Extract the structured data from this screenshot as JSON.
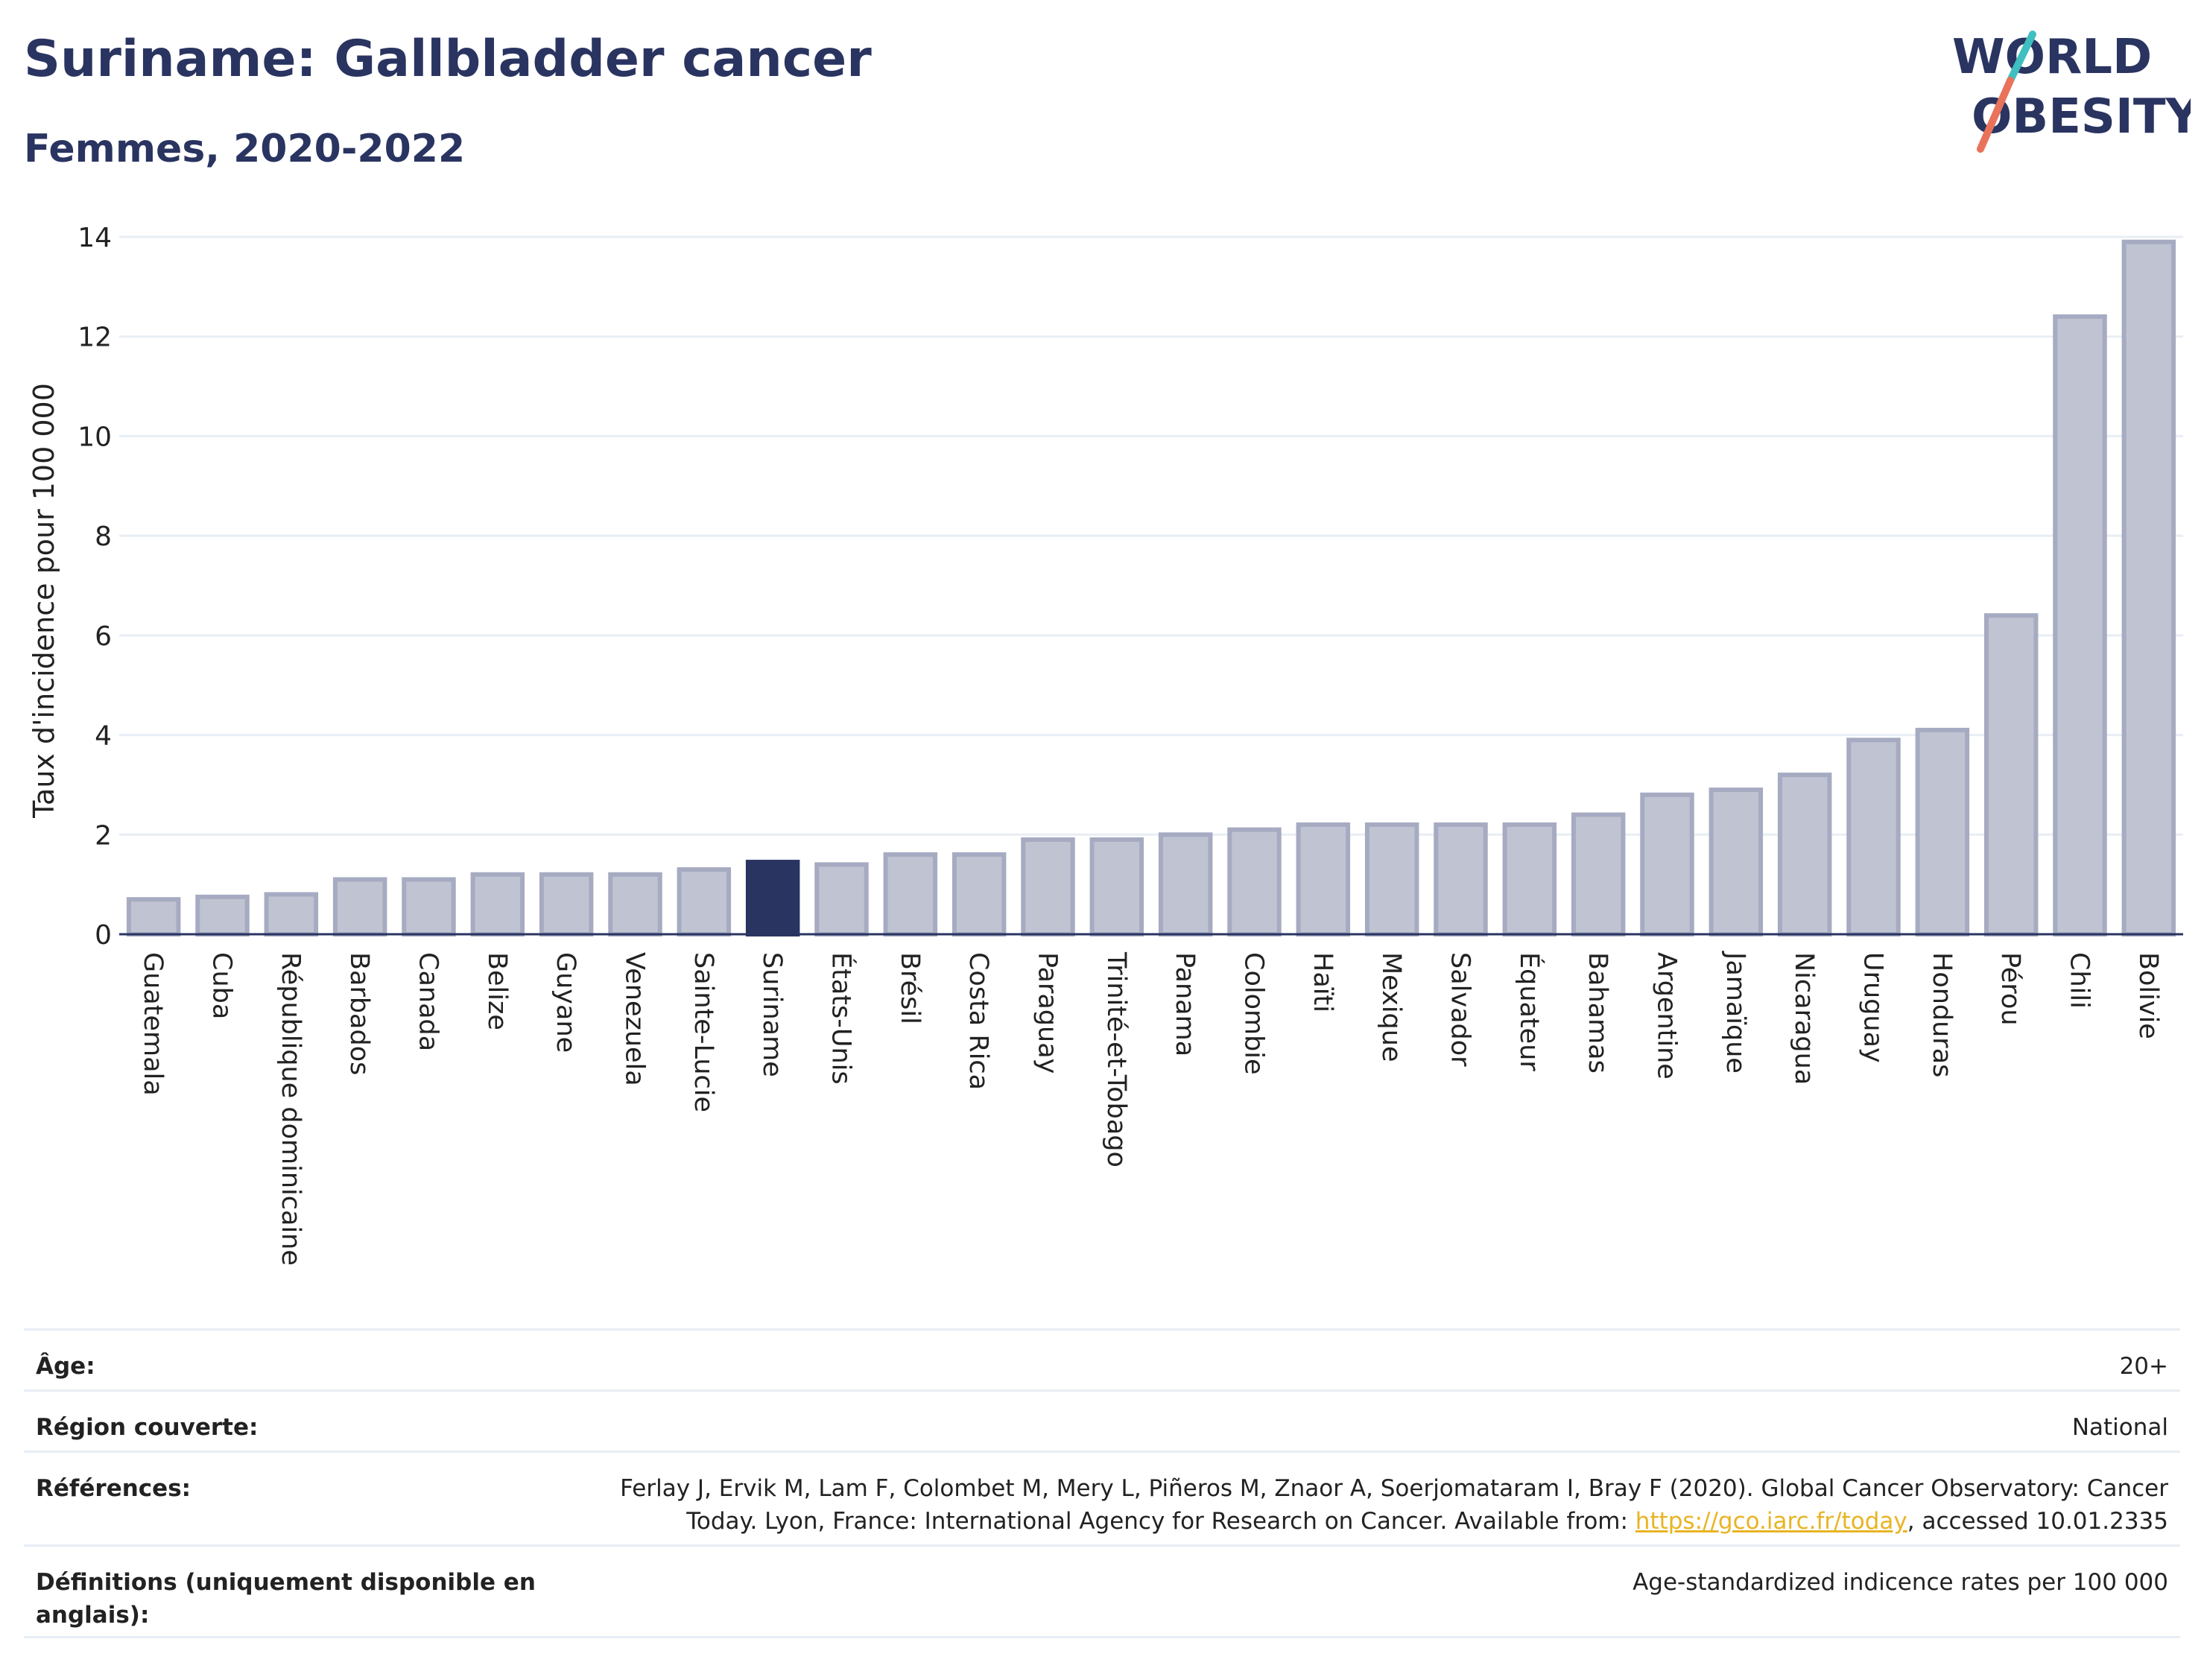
{
  "header": {
    "title": "Suriname: Gallbladder cancer",
    "subtitle": "Femmes, 2020-2022"
  },
  "logo": {
    "line1": "WORLD",
    "line2": "OBESITY",
    "colors": {
      "text": "#2a3461",
      "slash_coral": "#e8735a",
      "slash_teal": "#3fbfbf"
    }
  },
  "colors": {
    "bar_fill": "#c0c3d1",
    "bar_stroke": "#a6abc2",
    "highlight": "#2a3461",
    "grid": "#e8eef5",
    "axis": "#2a3461"
  },
  "chart_data": {
    "type": "bar",
    "ylabel": "Taux d'incidence pour 100 000",
    "xlabel": "",
    "ylim": [
      0,
      14
    ],
    "yticks": [
      0,
      2,
      4,
      6,
      8,
      10,
      12,
      14
    ],
    "grid": true,
    "highlight": "Suriname",
    "categories": [
      "Guatemala",
      "Cuba",
      "République dominicaine",
      "Barbados",
      "Canada",
      "Belize",
      "Guyane",
      "Venezuela",
      "Sainte-Lucie",
      "Suriname",
      "États-Unis",
      "Brésil",
      "Costa Rica",
      "Paraguay",
      "Trinité-et-Tobago",
      "Panama",
      "Colombie",
      "Haïti",
      "Mexique",
      "Salvador",
      "Équateur",
      "Bahamas",
      "Argentine",
      "Jamaïque",
      "Nicaragua",
      "Uruguay",
      "Honduras",
      "Pérou",
      "Chili",
      "Bolivie"
    ],
    "values": [
      0.7,
      0.75,
      0.8,
      1.1,
      1.1,
      1.2,
      1.2,
      1.2,
      1.3,
      1.45,
      1.4,
      1.6,
      1.6,
      1.9,
      1.9,
      2.0,
      2.1,
      2.2,
      2.2,
      2.2,
      2.2,
      2.4,
      2.8,
      2.9,
      3.2,
      3.9,
      4.1,
      6.4,
      12.4,
      13.9
    ]
  },
  "meta": {
    "age_label": "Âge:",
    "age_value": "20+",
    "region_label": "Région couverte:",
    "region_value": "National",
    "references_label": "Références:",
    "references_text_1": "Ferlay J, Ervik M, Lam F, Colombet M, Mery L, Piñeros M, Znaor A, Soerjomataram I, Bray F (2020). Global Cancer Observatory: Cancer Today. Lyon, France: International Agency for Research on Cancer. Available from: ",
    "references_link": "https://gco.iarc.fr/today",
    "references_text_2": ", accessed 10.01.2335",
    "definitions_label": "Définitions (uniquement disponible en anglais):",
    "definitions_value": "Age-standardized indicence rates per 100 000"
  }
}
